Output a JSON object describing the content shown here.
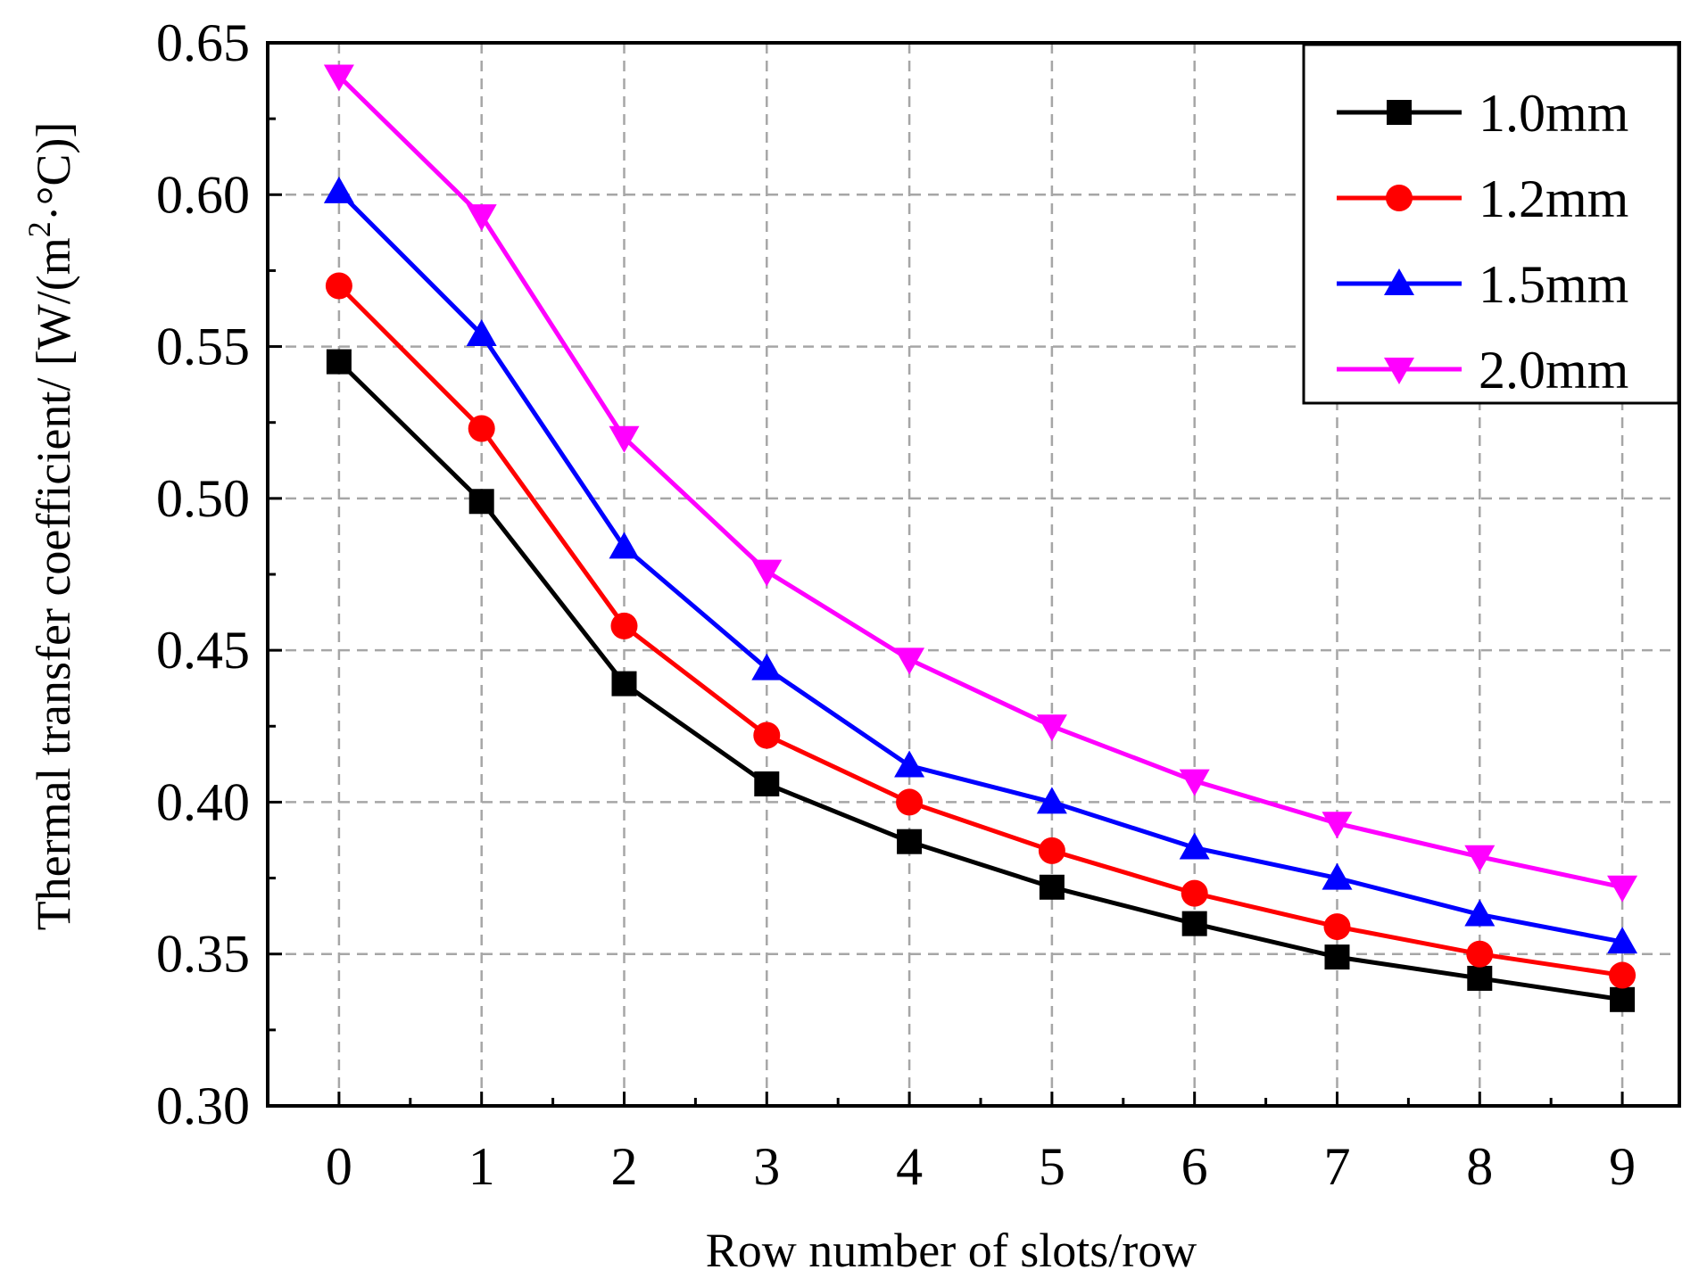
{
  "chart_data": {
    "type": "line",
    "title": "",
    "xlabel": "Row number of slots/row",
    "ylabel": "Thermal transfer coefficient/ [W/(m²·°C)]",
    "ylabel_parts": {
      "main": "Thermal transfer coefficient/ [W/(m",
      "sup": "2",
      "tail": "·°C)]"
    },
    "x": [
      0,
      1,
      2,
      3,
      4,
      5,
      6,
      7,
      8,
      9
    ],
    "xlim": [
      -0.5,
      9.4
    ],
    "ylim": [
      0.3,
      0.65
    ],
    "xticks": [
      "0",
      "1",
      "2",
      "3",
      "4",
      "5",
      "6",
      "7",
      "8",
      "9"
    ],
    "yticks": [
      "0.30",
      "0.35",
      "0.40",
      "0.45",
      "0.50",
      "0.55",
      "0.60",
      "0.65"
    ],
    "grid": true,
    "legend_position": "top-right",
    "series": [
      {
        "name": "1.0mm",
        "color": "#000000",
        "marker": "square",
        "values": [
          0.545,
          0.499,
          0.439,
          0.406,
          0.387,
          0.372,
          0.36,
          0.349,
          0.342,
          0.335
        ]
      },
      {
        "name": "1.2mm",
        "color": "#ff0000",
        "marker": "circle",
        "values": [
          0.57,
          0.523,
          0.458,
          0.422,
          0.4,
          0.384,
          0.37,
          0.359,
          0.35,
          0.343
        ]
      },
      {
        "name": "1.5mm",
        "color": "#0000ff",
        "marker": "triangle-up",
        "values": [
          0.601,
          0.554,
          0.484,
          0.444,
          0.412,
          0.4,
          0.385,
          0.375,
          0.363,
          0.354
        ]
      },
      {
        "name": "2.0mm",
        "color": "#ff00ff",
        "marker": "triangle-down",
        "values": [
          0.639,
          0.593,
          0.52,
          0.476,
          0.447,
          0.425,
          0.407,
          0.393,
          0.382,
          0.372
        ]
      }
    ]
  }
}
